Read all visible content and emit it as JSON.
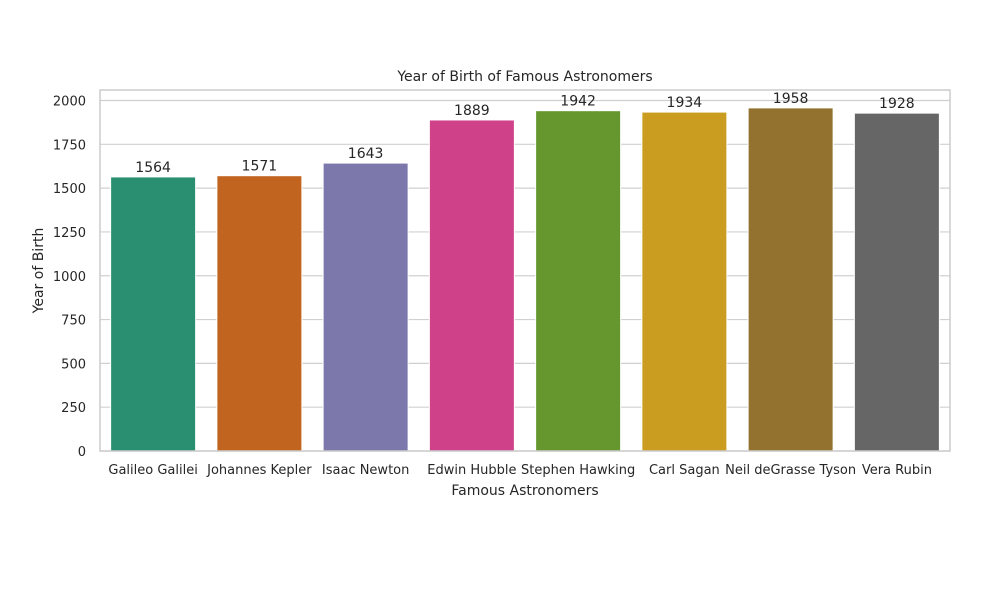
{
  "chart_data": {
    "type": "bar",
    "title": "Year of Birth of Famous Astronomers",
    "xlabel": "Famous Astronomers",
    "ylabel": "Year of Birth",
    "categories": [
      "Galileo Galilei",
      "Johannes Kepler",
      "Isaac Newton",
      "Edwin Hubble",
      "Stephen Hawking",
      "Carl Sagan",
      "Neil deGrasse Tyson",
      "Vera Rubin"
    ],
    "values": [
      1564,
      1571,
      1643,
      1889,
      1942,
      1934,
      1958,
      1928
    ],
    "ylim": [
      0,
      2000
    ],
    "yticks": [
      0,
      250,
      500,
      750,
      1000,
      1250,
      1500,
      1750,
      2000
    ],
    "grid": true,
    "bar_colors": [
      "#2a8f71",
      "#c0641f",
      "#7c78ab",
      "#cf428a",
      "#66972f",
      "#ca9c20",
      "#93712f",
      "#666666"
    ],
    "data_labels": true
  }
}
